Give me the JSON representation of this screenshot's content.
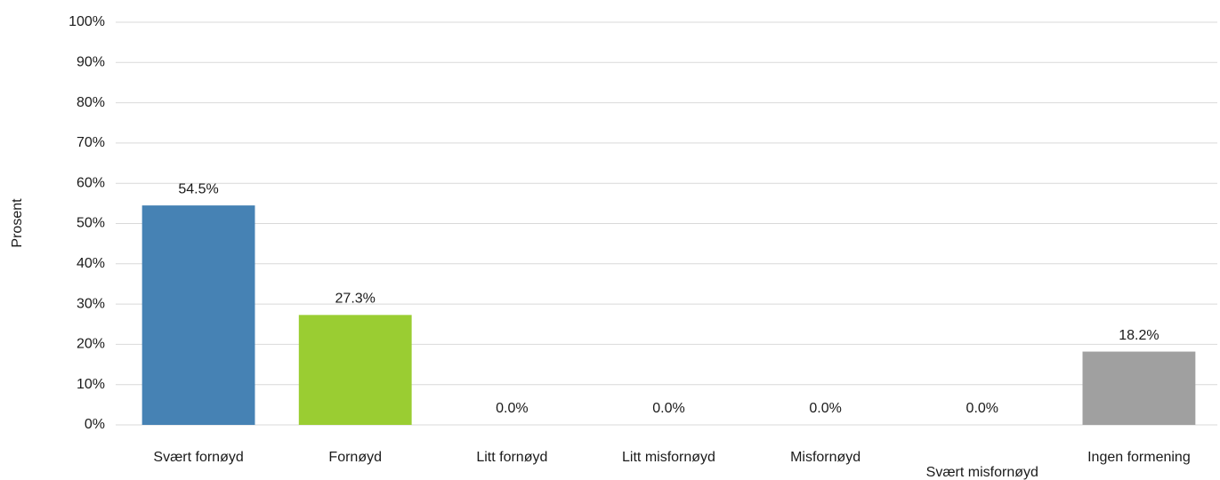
{
  "chart_data": {
    "type": "bar",
    "y_label": "Prosent",
    "categories": [
      "Svært fornøyd",
      "Fornøyd",
      "Litt fornøyd",
      "Litt misfornøyd",
      "Misfornøyd",
      "Svært misfornøyd",
      "Ingen formening"
    ],
    "values": [
      54.5,
      27.3,
      0.0,
      0.0,
      0.0,
      0.0,
      18.2
    ],
    "value_labels": [
      "54.5%",
      "27.3%",
      "0.0%",
      "0.0%",
      "0.0%",
      "0.0%",
      "18.2%"
    ],
    "colors": [
      "#4682b4",
      "#9acd32",
      "#ed7d31",
      "#ffc000",
      "#c00000",
      "#7030a0",
      "#a0a0a0"
    ],
    "ylim": [
      0,
      100
    ],
    "yticks": [
      {
        "value": 0,
        "label": "0%"
      },
      {
        "value": 10,
        "label": "10%"
      },
      {
        "value": 20,
        "label": "20%"
      },
      {
        "value": 30,
        "label": "30%"
      },
      {
        "value": 40,
        "label": "40%"
      },
      {
        "value": 50,
        "label": "50%"
      },
      {
        "value": 60,
        "label": "60%"
      },
      {
        "value": 70,
        "label": "70%"
      },
      {
        "value": 80,
        "label": "80%"
      },
      {
        "value": 90,
        "label": "90%"
      },
      {
        "value": 100,
        "label": "100%"
      }
    ],
    "grid": true
  }
}
